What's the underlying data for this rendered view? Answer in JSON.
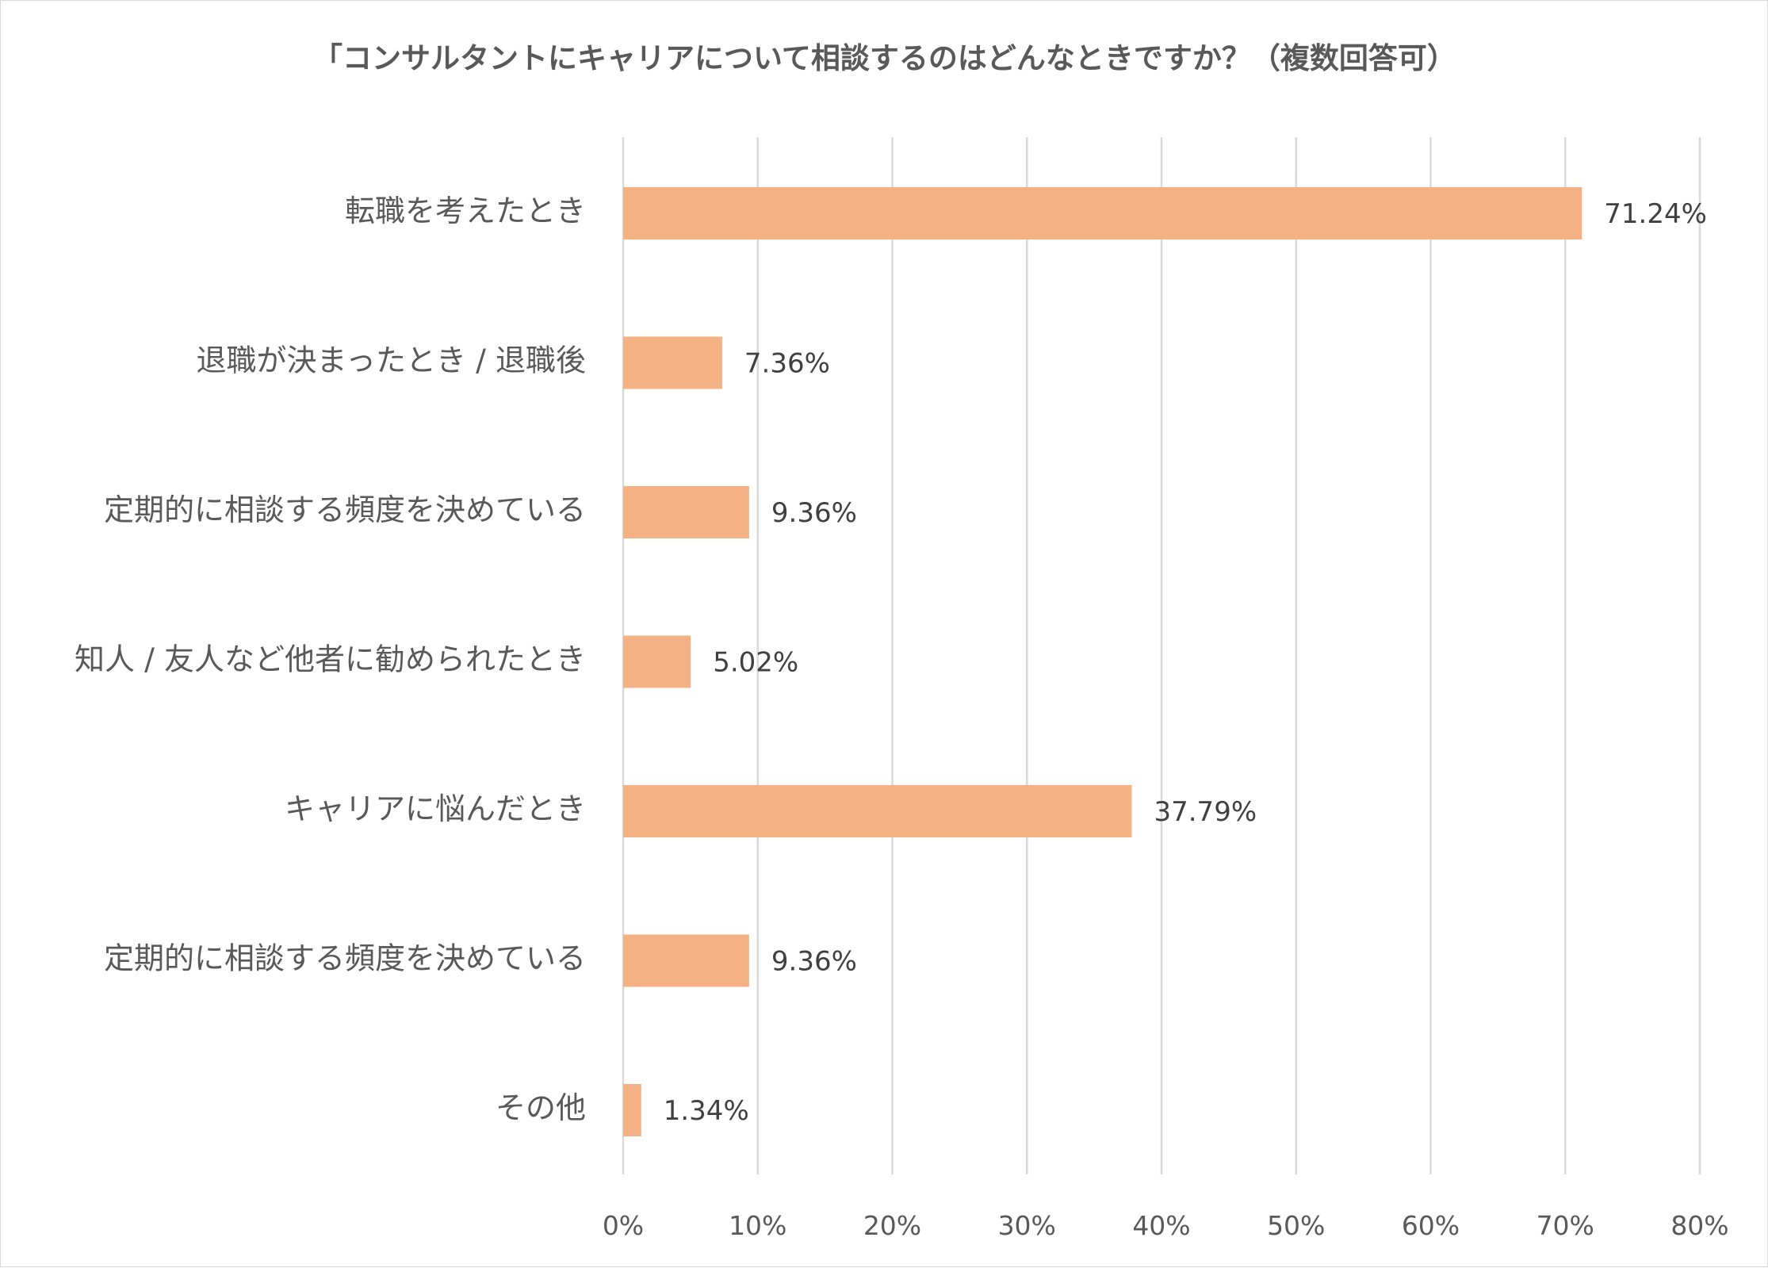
{
  "chart_data": {
    "type": "bar",
    "orientation": "horizontal",
    "title": "「コンサルタントにキャリアについて相談するのはどんなときですか？（複数回答可）",
    "categories": [
      "転職を考えたとき",
      "退職が決まったとき / 退職後",
      "定期的に相談する頻度を決めている",
      "知人 / 友人など他者に勧められたとき",
      "キャリアに悩んだとき",
      "定期的に相談する頻度を決めている",
      "その他"
    ],
    "values": [
      71.24,
      7.36,
      9.36,
      5.02,
      37.79,
      9.36,
      1.34
    ],
    "value_labels": [
      "71.24%",
      "7.36%",
      "9.36%",
      "5.02%",
      "37.79%",
      "9.36%",
      "1.34%"
    ],
    "xlim": [
      0,
      80
    ],
    "xticks": [
      0,
      10,
      20,
      30,
      40,
      50,
      60,
      70,
      80
    ],
    "xtick_labels": [
      "0%",
      "10%",
      "20%",
      "30%",
      "40%",
      "50%",
      "60%",
      "70%",
      "80%"
    ],
    "xlabel": "",
    "ylabel": "",
    "grid": "vertical",
    "legend": "none",
    "colors": {
      "bar": "#f4b183",
      "grid": "#d9d9d9",
      "text": "#595959",
      "value_text": "#404040"
    }
  }
}
